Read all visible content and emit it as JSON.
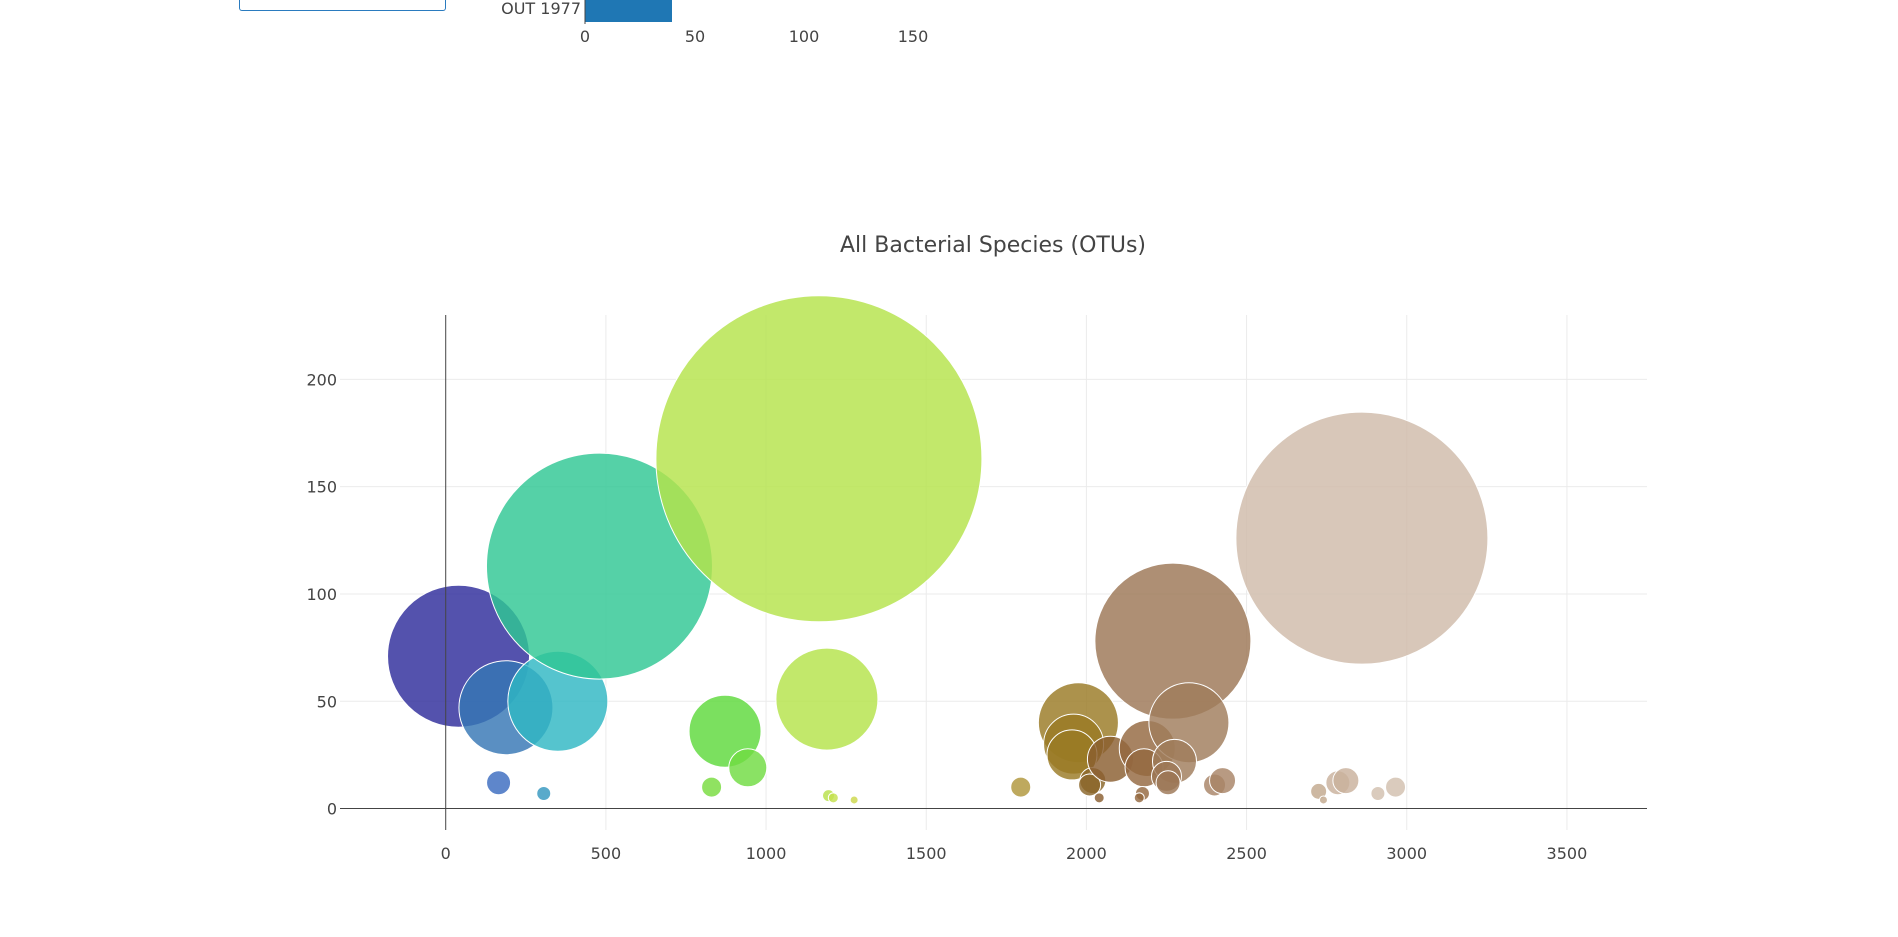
{
  "top_chart": {
    "type": "bar",
    "visible_category": "OUT 1977",
    "visible_value": 40,
    "x_ticks": [
      "0",
      "50",
      "100",
      "150"
    ],
    "xlim": [
      0,
      150
    ],
    "bar_color": "#1f77b4"
  },
  "chart_data": {
    "type": "scatter",
    "title": "All Bacterial Species (OTUs)",
    "xlabel": "",
    "ylabel": "",
    "xlim": [
      -330,
      3750
    ],
    "ylim": [
      -10,
      230
    ],
    "x_ticks": [
      0,
      500,
      1000,
      1500,
      2000,
      2500,
      3000,
      3500
    ],
    "y_ticks": [
      0,
      50,
      100,
      150,
      200
    ],
    "grid": true,
    "points": [
      {
        "x": 40,
        "y": 71,
        "size": 71,
        "color": "#2e2c9b"
      },
      {
        "x": 188,
        "y": 47,
        "size": 47,
        "color": "#3676b5"
      },
      {
        "x": 350,
        "y": 50,
        "size": 50,
        "color": "#2fb7c3"
      },
      {
        "x": 480,
        "y": 113,
        "size": 113,
        "color": "#2fc794"
      },
      {
        "x": 165,
        "y": 12,
        "size": 12,
        "color": "#3a6bc0"
      },
      {
        "x": 306,
        "y": 7,
        "size": 7,
        "color": "#3597c0"
      },
      {
        "x": 872,
        "y": 36,
        "size": 36,
        "color": "#5ed93c"
      },
      {
        "x": 943,
        "y": 19,
        "size": 19,
        "color": "#70dc42"
      },
      {
        "x": 830,
        "y": 10,
        "size": 10,
        "color": "#78dc3e"
      },
      {
        "x": 1165,
        "y": 163,
        "size": 163,
        "color": "#b4e34a"
      },
      {
        "x": 1190,
        "y": 51,
        "size": 51,
        "color": "#b4e34a"
      },
      {
        "x": 1195,
        "y": 6,
        "size": 6,
        "color": "#b8e04a"
      },
      {
        "x": 1210,
        "y": 5,
        "size": 5,
        "color": "#c4e04e"
      },
      {
        "x": 1275,
        "y": 4,
        "size": 4,
        "color": "#cdd84c"
      },
      {
        "x": 1795,
        "y": 10,
        "size": 10,
        "color": "#b0963a"
      },
      {
        "x": 1975,
        "y": 40,
        "size": 40,
        "color": "#9a7a25"
      },
      {
        "x": 1960,
        "y": 30,
        "size": 30,
        "color": "#9a7a25"
      },
      {
        "x": 1955,
        "y": 25,
        "size": 25,
        "color": "#9a7a25"
      },
      {
        "x": 2020,
        "y": 13,
        "size": 13,
        "color": "#8a6528"
      },
      {
        "x": 2010,
        "y": 11,
        "size": 11,
        "color": "#8a6528"
      },
      {
        "x": 2075,
        "y": 23,
        "size": 23,
        "color": "#8a5e30"
      },
      {
        "x": 2040,
        "y": 5,
        "size": 5,
        "color": "#8a5e30"
      },
      {
        "x": 2190,
        "y": 28,
        "size": 28,
        "color": "#946840"
      },
      {
        "x": 2180,
        "y": 19,
        "size": 19,
        "color": "#946840"
      },
      {
        "x": 2270,
        "y": 78,
        "size": 78,
        "color": "#9c7656"
      },
      {
        "x": 2320,
        "y": 40,
        "size": 40,
        "color": "#a07c5c"
      },
      {
        "x": 2275,
        "y": 22,
        "size": 22,
        "color": "#a07c5c"
      },
      {
        "x": 2250,
        "y": 15,
        "size": 15,
        "color": "#9c7656"
      },
      {
        "x": 2255,
        "y": 12,
        "size": 12,
        "color": "#9c7656"
      },
      {
        "x": 2175,
        "y": 7,
        "size": 7,
        "color": "#946840"
      },
      {
        "x": 2165,
        "y": 5,
        "size": 5,
        "color": "#946840"
      },
      {
        "x": 2400,
        "y": 11,
        "size": 11,
        "color": "#a88466"
      },
      {
        "x": 2425,
        "y": 13,
        "size": 13,
        "color": "#a88466"
      },
      {
        "x": 2860,
        "y": 126,
        "size": 126,
        "color": "#cfbbaa"
      },
      {
        "x": 2725,
        "y": 8,
        "size": 8,
        "color": "#c2a88e"
      },
      {
        "x": 2740,
        "y": 4,
        "size": 4,
        "color": "#c2a88e"
      },
      {
        "x": 2785,
        "y": 12,
        "size": 12,
        "color": "#c9b19c"
      },
      {
        "x": 2810,
        "y": 13,
        "size": 13,
        "color": "#c9b19c"
      },
      {
        "x": 2910,
        "y": 7,
        "size": 7,
        "color": "#d2bfae"
      },
      {
        "x": 2965,
        "y": 10,
        "size": 10,
        "color": "#d2bfae"
      }
    ]
  }
}
